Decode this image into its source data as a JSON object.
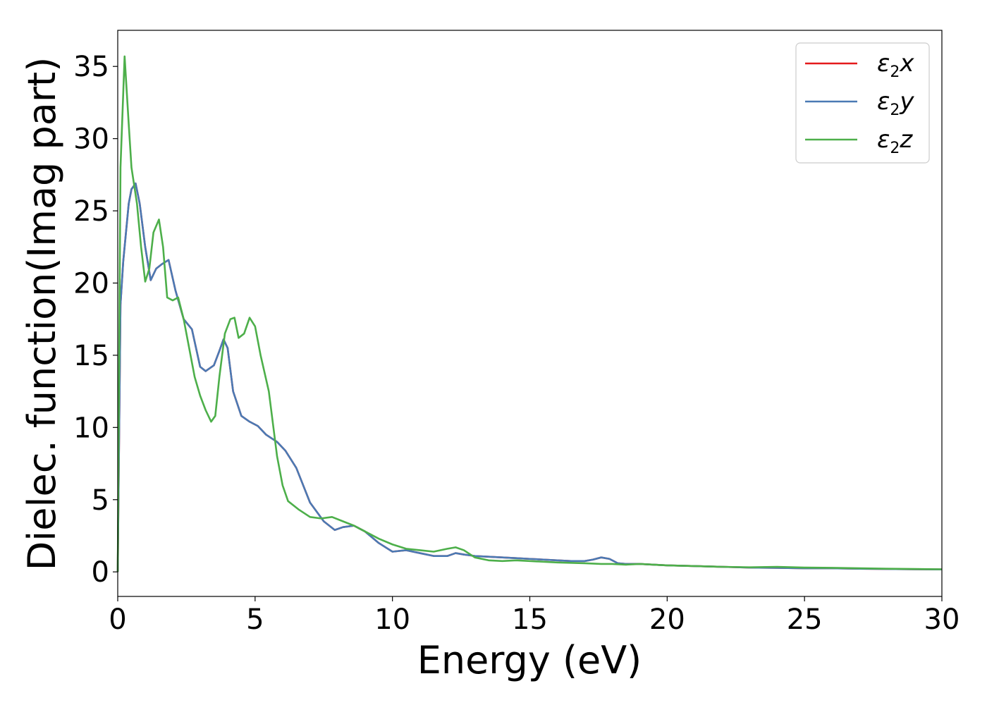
{
  "chart_data": {
    "type": "line",
    "title": "",
    "xlabel": "Energy (eV)",
    "ylabel": "Dielec. function(Imag part)",
    "xlim": [
      0,
      30
    ],
    "ylim": [
      -1.7,
      37.5
    ],
    "xticks": [
      0,
      5,
      10,
      15,
      20,
      25,
      30
    ],
    "yticks": [
      0,
      5,
      10,
      15,
      20,
      25,
      30,
      35
    ],
    "grid": false,
    "legend_position": "top-right",
    "series": [
      {
        "name": "ε2x",
        "color": "#e41a1c",
        "x": [
          0,
          0.1,
          0.2,
          0.3,
          0.4,
          0.5,
          0.65,
          0.8,
          1.0,
          1.2,
          1.4,
          1.6,
          1.85,
          2.1,
          2.4,
          2.7,
          3.0,
          3.2,
          3.5,
          3.7,
          3.85,
          4.0,
          4.2,
          4.5,
          4.8,
          5.1,
          5.4,
          5.8,
          6.1,
          6.5,
          7.0,
          7.5,
          7.9,
          8.2,
          8.6,
          9.0,
          9.5,
          10.0,
          10.5,
          11.0,
          11.5,
          12.0,
          12.3,
          12.6,
          13.0,
          13.5,
          14.0,
          14.5,
          15.0,
          15.5,
          16.0,
          16.5,
          17.0,
          17.3,
          17.6,
          17.9,
          18.2,
          18.5,
          19.0,
          19.5,
          20.0,
          21.0,
          22.0,
          23.0,
          24.0,
          25.0,
          26.0,
          27.0,
          28.0,
          29.0,
          30.0
        ],
        "values": [
          0,
          18.5,
          21.5,
          23.5,
          25.5,
          26.5,
          26.9,
          25.5,
          22.5,
          20.2,
          21.0,
          21.3,
          21.6,
          19.5,
          17.5,
          16.8,
          14.2,
          13.9,
          14.3,
          15.3,
          16.1,
          15.5,
          12.5,
          10.8,
          10.4,
          10.1,
          9.5,
          9.0,
          8.4,
          7.2,
          4.8,
          3.5,
          2.9,
          3.1,
          3.2,
          2.8,
          2.0,
          1.4,
          1.5,
          1.3,
          1.1,
          1.1,
          1.3,
          1.2,
          1.1,
          1.05,
          1.0,
          0.95,
          0.9,
          0.85,
          0.8,
          0.75,
          0.75,
          0.85,
          1.0,
          0.9,
          0.6,
          0.55,
          0.55,
          0.5,
          0.45,
          0.4,
          0.35,
          0.3,
          0.28,
          0.25,
          0.25,
          0.22,
          0.2,
          0.18,
          0.17
        ]
      },
      {
        "name": "ε2y",
        "color": "#4a7ab4",
        "x": [
          0,
          0.1,
          0.2,
          0.3,
          0.4,
          0.5,
          0.65,
          0.8,
          1.0,
          1.2,
          1.4,
          1.6,
          1.85,
          2.1,
          2.4,
          2.7,
          3.0,
          3.2,
          3.5,
          3.7,
          3.85,
          4.0,
          4.2,
          4.5,
          4.8,
          5.1,
          5.4,
          5.8,
          6.1,
          6.5,
          7.0,
          7.5,
          7.9,
          8.2,
          8.6,
          9.0,
          9.5,
          10.0,
          10.5,
          11.0,
          11.5,
          12.0,
          12.3,
          12.6,
          13.0,
          13.5,
          14.0,
          14.5,
          15.0,
          15.5,
          16.0,
          16.5,
          17.0,
          17.3,
          17.6,
          17.9,
          18.2,
          18.5,
          19.0,
          19.5,
          20.0,
          21.0,
          22.0,
          23.0,
          24.0,
          25.0,
          26.0,
          27.0,
          28.0,
          29.0,
          30.0
        ],
        "values": [
          0,
          18.5,
          21.5,
          23.5,
          25.5,
          26.5,
          26.9,
          25.5,
          22.5,
          20.2,
          21.0,
          21.3,
          21.6,
          19.5,
          17.5,
          16.8,
          14.2,
          13.9,
          14.3,
          15.3,
          16.1,
          15.5,
          12.5,
          10.8,
          10.4,
          10.1,
          9.5,
          9.0,
          8.4,
          7.2,
          4.8,
          3.5,
          2.9,
          3.1,
          3.2,
          2.8,
          2.0,
          1.4,
          1.5,
          1.3,
          1.1,
          1.1,
          1.3,
          1.2,
          1.1,
          1.05,
          1.0,
          0.95,
          0.9,
          0.85,
          0.8,
          0.75,
          0.75,
          0.85,
          1.0,
          0.9,
          0.6,
          0.55,
          0.55,
          0.5,
          0.45,
          0.4,
          0.35,
          0.3,
          0.28,
          0.25,
          0.25,
          0.22,
          0.2,
          0.18,
          0.17
        ]
      },
      {
        "name": "ε2z",
        "color": "#4daf4a",
        "x": [
          0,
          0.1,
          0.25,
          0.4,
          0.5,
          0.7,
          0.85,
          1.0,
          1.15,
          1.3,
          1.5,
          1.65,
          1.8,
          2.0,
          2.2,
          2.4,
          2.6,
          2.8,
          3.0,
          3.2,
          3.4,
          3.55,
          3.7,
          3.9,
          4.1,
          4.25,
          4.4,
          4.6,
          4.8,
          5.0,
          5.2,
          5.5,
          5.8,
          6.0,
          6.2,
          6.6,
          7.0,
          7.4,
          7.8,
          8.2,
          8.6,
          9.0,
          9.5,
          10.0,
          10.5,
          11.0,
          11.5,
          12.0,
          12.3,
          12.6,
          13.0,
          13.5,
          14.0,
          14.5,
          15.0,
          16.0,
          17.0,
          17.6,
          18.0,
          18.5,
          19.0,
          20.0,
          21.0,
          22.0,
          23.0,
          24.0,
          25.0,
          26.0,
          27.0,
          28.0,
          29.0,
          30.0
        ],
        "values": [
          0,
          28.0,
          35.7,
          31.0,
          28.0,
          25.5,
          22.5,
          20.1,
          21.0,
          23.5,
          24.4,
          22.5,
          19.0,
          18.8,
          19.0,
          17.5,
          15.5,
          13.5,
          12.2,
          11.2,
          10.4,
          10.8,
          13.5,
          16.5,
          17.5,
          17.6,
          16.2,
          16.5,
          17.6,
          17.0,
          15.0,
          12.5,
          8.0,
          6.0,
          4.9,
          4.3,
          3.8,
          3.7,
          3.8,
          3.5,
          3.2,
          2.8,
          2.3,
          1.9,
          1.6,
          1.5,
          1.4,
          1.6,
          1.7,
          1.5,
          1.0,
          0.8,
          0.75,
          0.8,
          0.75,
          0.65,
          0.6,
          0.55,
          0.55,
          0.5,
          0.55,
          0.45,
          0.4,
          0.35,
          0.32,
          0.35,
          0.3,
          0.28,
          0.25,
          0.22,
          0.2,
          0.18
        ]
      }
    ]
  }
}
